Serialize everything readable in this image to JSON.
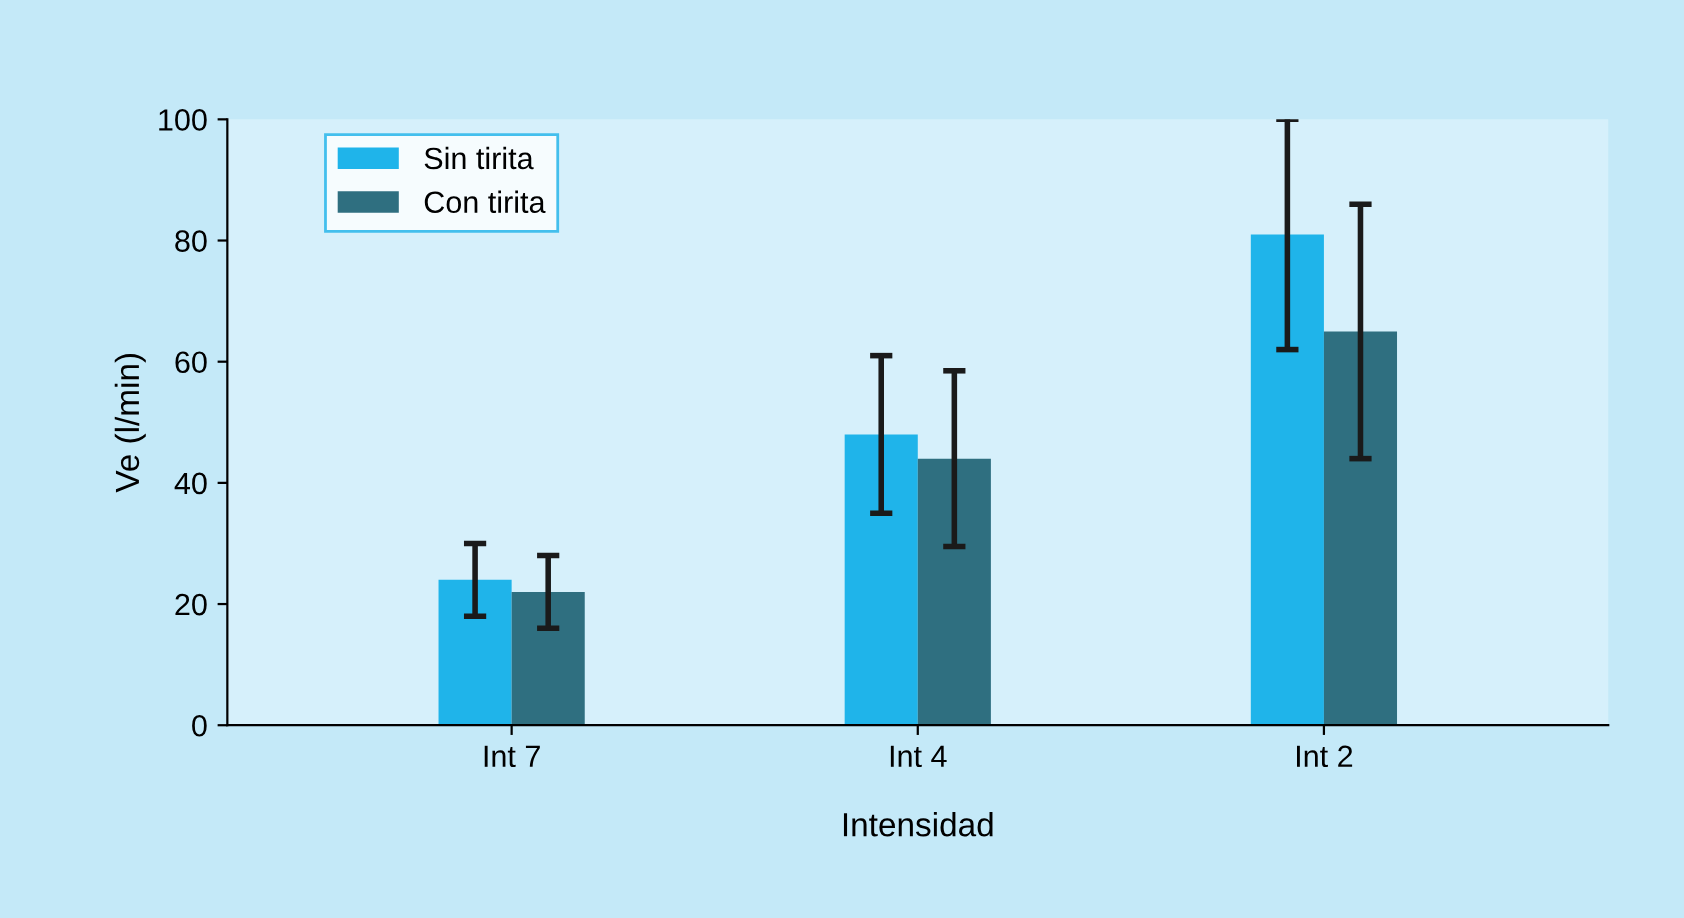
{
  "chart_data": {
    "type": "bar",
    "xlabel": "Intensidad",
    "ylabel": "Ve (l/min)",
    "categories": [
      "Int 7",
      "Int 4",
      "Int 2"
    ],
    "series": [
      {
        "name": "Sin tirita",
        "color": "#1fb4ea",
        "values": [
          24,
          48,
          81
        ],
        "errors": [
          6,
          13,
          19
        ]
      },
      {
        "name": "Con tirita",
        "color": "#2f6f80",
        "values": [
          22,
          44,
          65
        ],
        "errors": [
          6,
          14.5,
          21
        ]
      }
    ],
    "ylim": [
      0,
      100
    ],
    "yticks": [
      0,
      20,
      40,
      60,
      80,
      100
    ],
    "grid": false,
    "legend": "top left"
  }
}
